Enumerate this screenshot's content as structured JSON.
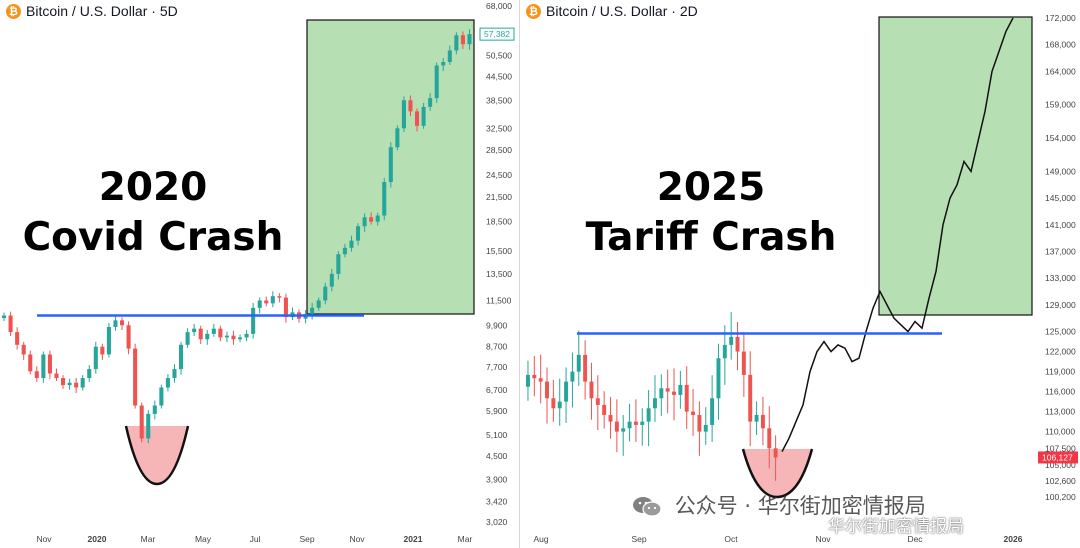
{
  "left": {
    "header": {
      "icon": "bitcoin-icon",
      "text": "Bitcoin / U.S. Dollar · 5D"
    },
    "title_line1": "2020",
    "title_line2": "Covid Crash",
    "price_badge": "57,382",
    "y_ticks": [
      "68,000",
      "50,500",
      "44,500",
      "38,500",
      "32,500",
      "28,500",
      "24,500",
      "21,500",
      "18,500",
      "15,500",
      "13,500",
      "11,500",
      "9,900",
      "8,700",
      "7,700",
      "6,700",
      "5,900",
      "5,100",
      "4,500",
      "3,900",
      "3,420",
      "3,020"
    ],
    "x_ticks": [
      "Nov",
      "2020",
      "Mar",
      "May",
      "Jul",
      "Sep",
      "Nov",
      "2021",
      "Mar"
    ],
    "colors": {
      "up": "#26a69a",
      "down": "#ef5350",
      "resistance": "#2962ff",
      "box": "#b7dfb4",
      "cup": "#f6b6b8"
    }
  },
  "right": {
    "header": {
      "icon": "bitcoin-icon",
      "text": "Bitcoin / U.S. Dollar · 2D"
    },
    "title_line1": "2025",
    "title_line2": "Tariff Crash",
    "price_badge": "106,127",
    "y_ticks": [
      "172,000",
      "168,000",
      "164,000",
      "159,000",
      "154,000",
      "149,000",
      "145,000",
      "141,000",
      "137,000",
      "133,000",
      "129,000",
      "125,000",
      "122,000",
      "119,000",
      "116,000",
      "113,000",
      "110,000",
      "107,500",
      "105,000",
      "102,600",
      "100,200"
    ],
    "x_ticks": [
      "Aug",
      "Sep",
      "Oct",
      "Nov",
      "Dec",
      "2026"
    ],
    "colors": {
      "up": "#26a69a",
      "down": "#ef5350",
      "resistance": "#2962ff",
      "box": "#b7dfb4",
      "cup": "#f6b6b8",
      "badge": "#f23645"
    }
  },
  "watermark": "公众号 · 华尔街加密情报局",
  "watermark2": "华尔街加密情报局",
  "chart_data": [
    {
      "type": "candlestick",
      "title": "Bitcoin / U.S. Dollar · 5D",
      "annotation": "2020 Covid Crash",
      "x_ticks": [
        "Nov",
        "2020",
        "Mar",
        "May",
        "Jul",
        "Sep",
        "Nov",
        "2021",
        "Mar"
      ],
      "y_scale": "log",
      "ylim": [
        3020,
        68000
      ],
      "resistance_level": 10500,
      "last_price": 57382,
      "series": [
        {
          "name": "BTCUSD",
          "approx_closes": [
            10500,
            9500,
            8800,
            8300,
            7500,
            7200,
            8300,
            7400,
            7200,
            6900,
            7000,
            6800,
            7200,
            7600,
            8700,
            8300,
            9800,
            10200,
            9900,
            8600,
            6100,
            5000,
            5800,
            6100,
            6800,
            7200,
            7600,
            8800,
            9500,
            9700,
            9100,
            9400,
            9700,
            9200,
            9300,
            9100,
            9200,
            9400,
            11000,
            11500,
            11300,
            11800,
            11700,
            10400,
            10700,
            10300,
            10600,
            11000,
            11500,
            12500,
            13500,
            15200,
            15800,
            16500,
            18000,
            19000,
            18500,
            19200,
            23500,
            29000,
            32500,
            38500,
            36000,
            33000,
            37000,
            39000,
            47500,
            48500,
            52000,
            57000,
            54000,
            57382
          ]
        }
      ]
    },
    {
      "type": "candlestick",
      "title": "Bitcoin / U.S. Dollar · 2D",
      "annotation": "2025 Tariff Crash",
      "x_ticks": [
        "Aug",
        "Sep",
        "Oct",
        "Nov",
        "Dec",
        "2026"
      ],
      "ylim": [
        100200,
        172000
      ],
      "resistance_level": 124700,
      "last_price": 106127,
      "series": [
        {
          "name": "BTCUSD",
          "approx_closes": [
            118500,
            118000,
            117500,
            115000,
            113500,
            114500,
            117500,
            119000,
            121500,
            117500,
            115000,
            114000,
            112500,
            111500,
            110000,
            110500,
            111500,
            111000,
            111500,
            113500,
            115000,
            116500,
            116000,
            115500,
            117000,
            113000,
            112500,
            110000,
            111000,
            115000,
            121000,
            123000,
            124200,
            122000,
            118500,
            111500,
            112500,
            110500,
            107500,
            106127
          ]
        },
        {
          "name": "projection",
          "approx_values": [
            107000,
            109000,
            111500,
            114000,
            119000,
            122000,
            123500,
            122000,
            123000,
            122500,
            120500,
            121000,
            125000,
            128500,
            131000,
            129000,
            127000,
            126000,
            125000,
            126500,
            125500,
            130000,
            134000,
            141000,
            145000,
            147000,
            150500,
            149000,
            153500,
            158000,
            164000,
            167000,
            170000,
            172000
          ]
        }
      ]
    }
  ]
}
